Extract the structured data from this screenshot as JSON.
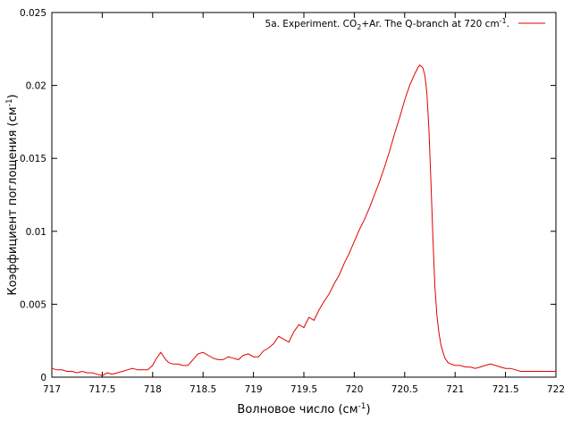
{
  "chart_data": {
    "type": "line",
    "xlabel": {
      "main": "Волновое число (см",
      "sup": "-1",
      "tail": ")"
    },
    "ylabel": {
      "main": "Коэффициент поглощения (см",
      "sup": "-1",
      "tail": ")"
    },
    "xlim": [
      717,
      722
    ],
    "ylim": [
      0,
      0.025
    ],
    "xticks": [
      "717",
      "717.5",
      "718",
      "718.5",
      "719",
      "719.5",
      "720",
      "720.5",
      "721",
      "721.5",
      "722"
    ],
    "yticks": [
      "0",
      "0.005",
      "0.01",
      "0.015",
      "0.02",
      "0.025"
    ],
    "legend": {
      "position": "top-right",
      "parts": [
        "5a. Experiment.  CO",
        "2",
        "+Ar. The Q-branch at 720 cm",
        "-1",
        "."
      ]
    },
    "grid": false,
    "series_color": "#e00000",
    "series": [
      {
        "x": [
          717.0,
          717.05,
          717.1,
          717.15,
          717.2,
          717.25,
          717.3,
          717.35,
          717.4,
          717.45,
          717.5,
          717.55,
          717.6,
          717.65,
          717.7,
          717.75,
          717.8,
          717.85,
          717.9,
          717.95,
          718.0,
          718.03,
          718.06,
          718.08,
          718.1,
          718.13,
          718.16,
          718.2,
          718.25,
          718.3,
          718.35,
          718.4,
          718.45,
          718.5,
          718.55,
          718.6,
          718.65,
          718.7,
          718.75,
          718.8,
          718.85,
          718.9,
          718.95,
          719.0,
          719.05,
          719.1,
          719.15,
          719.2,
          719.25,
          719.3,
          719.35,
          719.4,
          719.45,
          719.5,
          719.55,
          719.6,
          719.65,
          719.7,
          719.75,
          719.8,
          719.85,
          719.9,
          719.95,
          720.0,
          720.05,
          720.1,
          720.15,
          720.2,
          720.25,
          720.3,
          720.35,
          720.4,
          720.45,
          720.5,
          720.55,
          720.6,
          720.63,
          720.65,
          720.68,
          720.7,
          720.72,
          720.74,
          720.76,
          720.78,
          720.8,
          720.82,
          720.84,
          720.86,
          720.88,
          720.9,
          720.93,
          720.96,
          721.0,
          721.05,
          721.1,
          721.15,
          721.2,
          721.25,
          721.3,
          721.35,
          721.4,
          721.45,
          721.5,
          721.55,
          721.6,
          721.65,
          721.7,
          721.75,
          721.8,
          721.85,
          721.9,
          721.95,
          722.0
        ],
        "y": [
          0.0006,
          0.0005,
          0.0005,
          0.0004,
          0.0004,
          0.0003,
          0.0004,
          0.0003,
          0.0003,
          0.0002,
          0.0001,
          0.0003,
          0.0002,
          0.0003,
          0.0004,
          0.0005,
          0.0006,
          0.0005,
          0.0005,
          0.0005,
          0.0008,
          0.0012,
          0.0015,
          0.0017,
          0.0015,
          0.0012,
          0.001,
          0.0009,
          0.0009,
          0.0008,
          0.0008,
          0.0012,
          0.0016,
          0.0017,
          0.0015,
          0.0013,
          0.0012,
          0.0012,
          0.0014,
          0.0013,
          0.0012,
          0.0015,
          0.0016,
          0.0014,
          0.0014,
          0.0018,
          0.002,
          0.0023,
          0.0028,
          0.0026,
          0.0024,
          0.0031,
          0.0036,
          0.0034,
          0.0041,
          0.0039,
          0.0046,
          0.0052,
          0.0057,
          0.0064,
          0.007,
          0.0078,
          0.0085,
          0.0093,
          0.0101,
          0.0108,
          0.0116,
          0.0125,
          0.0134,
          0.0144,
          0.0155,
          0.0167,
          0.0178,
          0.019,
          0.02,
          0.0208,
          0.0212,
          0.0214,
          0.0212,
          0.0207,
          0.0195,
          0.017,
          0.0135,
          0.0095,
          0.0062,
          0.0042,
          0.003,
          0.0022,
          0.0017,
          0.0013,
          0.001,
          0.0009,
          0.0008,
          0.0008,
          0.0007,
          0.0007,
          0.0006,
          0.0007,
          0.0008,
          0.0009,
          0.0008,
          0.0007,
          0.0006,
          0.0006,
          0.0005,
          0.0004,
          0.0004,
          0.0004,
          0.0004,
          0.0004,
          0.0004,
          0.0004,
          0.0004
        ]
      }
    ]
  }
}
